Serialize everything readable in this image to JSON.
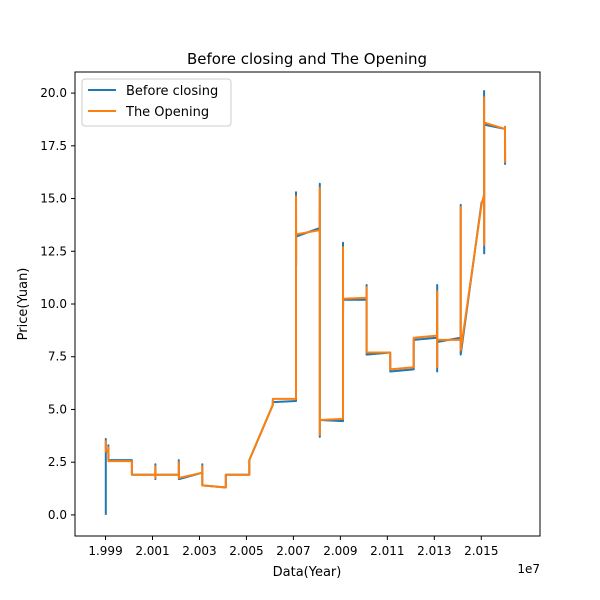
{
  "chart_data": {
    "type": "line",
    "title": "Before closing and The Opening",
    "xlabel": "Data(Year)",
    "ylabel": "Price(Yuan)",
    "x_offset_text": "1e7",
    "xlim": [
      19977000,
      20175000
    ],
    "ylim": [
      -1.0,
      21.0
    ],
    "x_ticks": [
      {
        "value": 19990000,
        "label": "1.999"
      },
      {
        "value": 20010000,
        "label": "2.001"
      },
      {
        "value": 20030000,
        "label": "2.003"
      },
      {
        "value": 20050000,
        "label": "2.005"
      },
      {
        "value": 20070000,
        "label": "2.007"
      },
      {
        "value": 20090000,
        "label": "2.009"
      },
      {
        "value": 20110000,
        "label": "2.011"
      },
      {
        "value": 20130000,
        "label": "2.013"
      },
      {
        "value": 20150000,
        "label": "2.015"
      }
    ],
    "y_ticks": [
      {
        "value": 0,
        "label": "0.0"
      },
      {
        "value": 2.5,
        "label": "2.5"
      },
      {
        "value": 5,
        "label": "5.0"
      },
      {
        "value": 7.5,
        "label": "7.5"
      },
      {
        "value": 10,
        "label": "10.0"
      },
      {
        "value": 12.5,
        "label": "12.5"
      },
      {
        "value": 15,
        "label": "15.0"
      },
      {
        "value": 17.5,
        "label": "17.5"
      },
      {
        "value": 20,
        "label": "20.0"
      }
    ],
    "grid": false,
    "legend_position": "top-left",
    "series": [
      {
        "name": "Before closing",
        "color": "#1f77b4",
        "x": [
          19990105,
          19990120,
          19990130,
          19990150,
          19990180,
          19991200,
          19991210,
          19991215,
          19991230,
          20001200,
          20001210,
          20001225,
          20001235,
          20011200,
          20011215,
          20011230,
          20011240,
          20021200,
          20021215,
          20021230,
          20031200,
          20031215,
          20031225,
          20041200,
          20041215,
          20041225,
          20051200,
          20051215,
          20051225,
          20061200,
          20061215,
          20061225,
          20061235,
          20071100,
          20071120,
          20071130,
          20071140,
          20071160,
          20081200,
          20081220,
          20081230,
          20081240,
          20091100,
          20091120,
          20091130,
          20091140,
          20101130,
          20101150,
          20101160,
          20111230,
          20111250,
          20121210,
          20121220,
          20121240,
          20131200,
          20131210,
          20131220,
          20131230,
          20141210,
          20141220,
          20141230,
          20150110,
          20151200,
          20151210,
          20151220,
          20151230,
          20160100,
          20160110,
          20160120
        ],
        "values": [
          0.0,
          3.6,
          3.0,
          3.1,
          3.0,
          3.0,
          3.3,
          2.9,
          2.6,
          2.6,
          2.6,
          2.3,
          1.9,
          1.9,
          2.4,
          1.7,
          1.9,
          1.9,
          2.6,
          1.7,
          2.0,
          2.4,
          1.4,
          1.3,
          1.6,
          1.9,
          1.9,
          2.4,
          2.6,
          5.2,
          5.3,
          5.4,
          5.35,
          5.4,
          15.3,
          11.8,
          13.5,
          13.2,
          13.6,
          15.7,
          3.7,
          4.5,
          4.45,
          12.9,
          9.3,
          10.2,
          10.2,
          10.9,
          7.6,
          7.7,
          6.8,
          6.9,
          8.0,
          8.3,
          8.4,
          10.9,
          6.8,
          8.2,
          8.4,
          14.7,
          7.6,
          14.8,
          15.0,
          20.1,
          12.4,
          18.5,
          18.3,
          18.4,
          16.6
        ]
      },
      {
        "name": "The Opening",
        "color": "#ff7f0e",
        "x": [
          19990105,
          19990120,
          19990130,
          19990150,
          19990180,
          19991200,
          19991210,
          19991215,
          19991230,
          20001200,
          20001210,
          20001225,
          20001235,
          20011200,
          20011215,
          20011230,
          20011240,
          20021200,
          20021215,
          20021230,
          20031200,
          20031215,
          20031225,
          20041200,
          20041215,
          20041225,
          20051200,
          20051215,
          20051225,
          20061200,
          20061215,
          20061225,
          20061235,
          20071100,
          20071120,
          20071130,
          20071140,
          20071160,
          20081200,
          20081220,
          20081230,
          20081240,
          20091100,
          20091120,
          20091130,
          20091140,
          20101130,
          20101150,
          20101160,
          20111230,
          20111250,
          20121210,
          20121220,
          20121240,
          20131200,
          20131210,
          20131220,
          20131230,
          20141210,
          20141220,
          20141230,
          20150110,
          20151200,
          20151210,
          20151220,
          20151230,
          20160100,
          20160110,
          20160120
        ],
        "values": [
          3.0,
          3.5,
          3.0,
          3.05,
          3.05,
          3.05,
          3.2,
          2.8,
          2.55,
          2.55,
          2.5,
          2.2,
          1.9,
          1.9,
          2.3,
          1.75,
          1.9,
          1.9,
          2.5,
          1.75,
          2.0,
          2.3,
          1.4,
          1.3,
          1.5,
          1.9,
          1.9,
          2.3,
          2.6,
          5.2,
          5.3,
          5.5,
          5.5,
          5.5,
          15.1,
          12.0,
          13.4,
          13.3,
          13.5,
          15.5,
          3.8,
          4.5,
          4.55,
          12.7,
          9.5,
          10.25,
          10.3,
          10.8,
          7.7,
          7.7,
          6.9,
          7.0,
          8.0,
          8.4,
          8.5,
          10.6,
          7.0,
          8.3,
          8.3,
          14.6,
          7.8,
          14.7,
          15.2,
          19.8,
          12.8,
          18.6,
          18.3,
          18.4,
          16.7
        ]
      }
    ]
  }
}
